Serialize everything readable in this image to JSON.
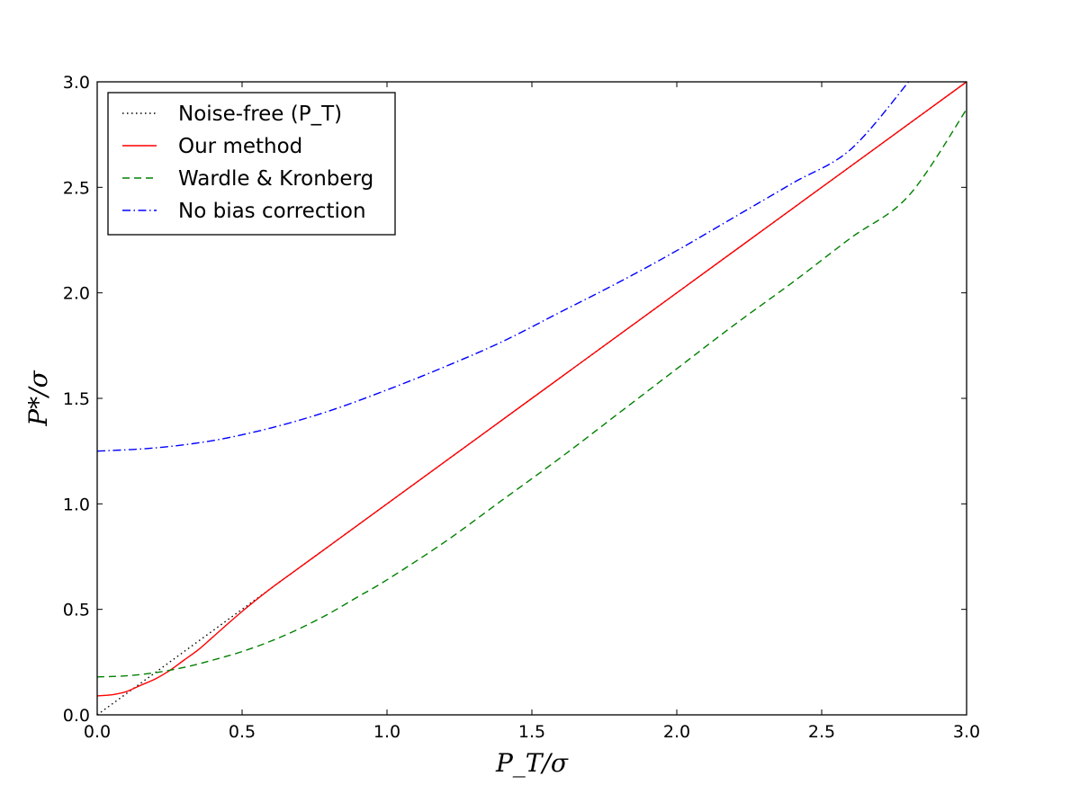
{
  "chart_data": {
    "type": "line",
    "xlabel": "P_T/σ",
    "ylabel": "P*/σ",
    "xlim": [
      0.0,
      3.0
    ],
    "ylim": [
      0.0,
      3.0
    ],
    "xticks": [
      "0.0",
      "0.5",
      "1.0",
      "1.5",
      "2.0",
      "2.5",
      "3.0"
    ],
    "yticks": [
      "0.0",
      "0.5",
      "1.0",
      "1.5",
      "2.0",
      "2.5",
      "3.0"
    ],
    "grid": false,
    "legend_position": "top-left",
    "series": [
      {
        "name": "Noise-free (P_T)",
        "color": "#000000",
        "style": "dotted",
        "x": [
          0.0,
          3.0
        ],
        "y": [
          0.0,
          3.0
        ]
      },
      {
        "name": "Our method",
        "color": "#ff0000",
        "style": "solid",
        "x": [
          0.0,
          0.05,
          0.1,
          0.15,
          0.2,
          0.25,
          0.3,
          0.35,
          0.4,
          0.5,
          0.6,
          0.7,
          0.8,
          0.9,
          1.0,
          1.5,
          2.0,
          2.5,
          3.0
        ],
        "y": [
          0.09,
          0.095,
          0.11,
          0.14,
          0.17,
          0.21,
          0.26,
          0.31,
          0.37,
          0.49,
          0.6,
          0.7,
          0.8,
          0.9,
          1.0,
          1.5,
          2.0,
          2.5,
          3.0
        ]
      },
      {
        "name": "Wardle & Kronberg",
        "color": "#008000",
        "style": "dashed",
        "x": [
          0.0,
          0.1,
          0.2,
          0.3,
          0.4,
          0.5,
          0.6,
          0.7,
          0.8,
          0.9,
          1.0,
          1.2,
          1.4,
          1.6,
          1.8,
          2.0,
          2.2,
          2.4,
          2.6,
          2.8,
          3.0
        ],
        "y": [
          0.18,
          0.185,
          0.2,
          0.225,
          0.26,
          0.3,
          0.35,
          0.41,
          0.48,
          0.56,
          0.64,
          0.82,
          1.02,
          1.22,
          1.43,
          1.64,
          1.85,
          2.05,
          2.26,
          2.46,
          2.87
        ]
      },
      {
        "name": "No bias correction",
        "color": "#0000ff",
        "style": "dashdot",
        "x": [
          0.0,
          0.2,
          0.4,
          0.6,
          0.8,
          1.0,
          1.2,
          1.4,
          1.6,
          1.8,
          2.0,
          2.2,
          2.4,
          2.6,
          2.8
        ],
        "y": [
          1.25,
          1.265,
          1.3,
          1.36,
          1.44,
          1.54,
          1.65,
          1.77,
          1.91,
          2.05,
          2.2,
          2.36,
          2.52,
          2.68,
          3.0
        ]
      }
    ]
  }
}
